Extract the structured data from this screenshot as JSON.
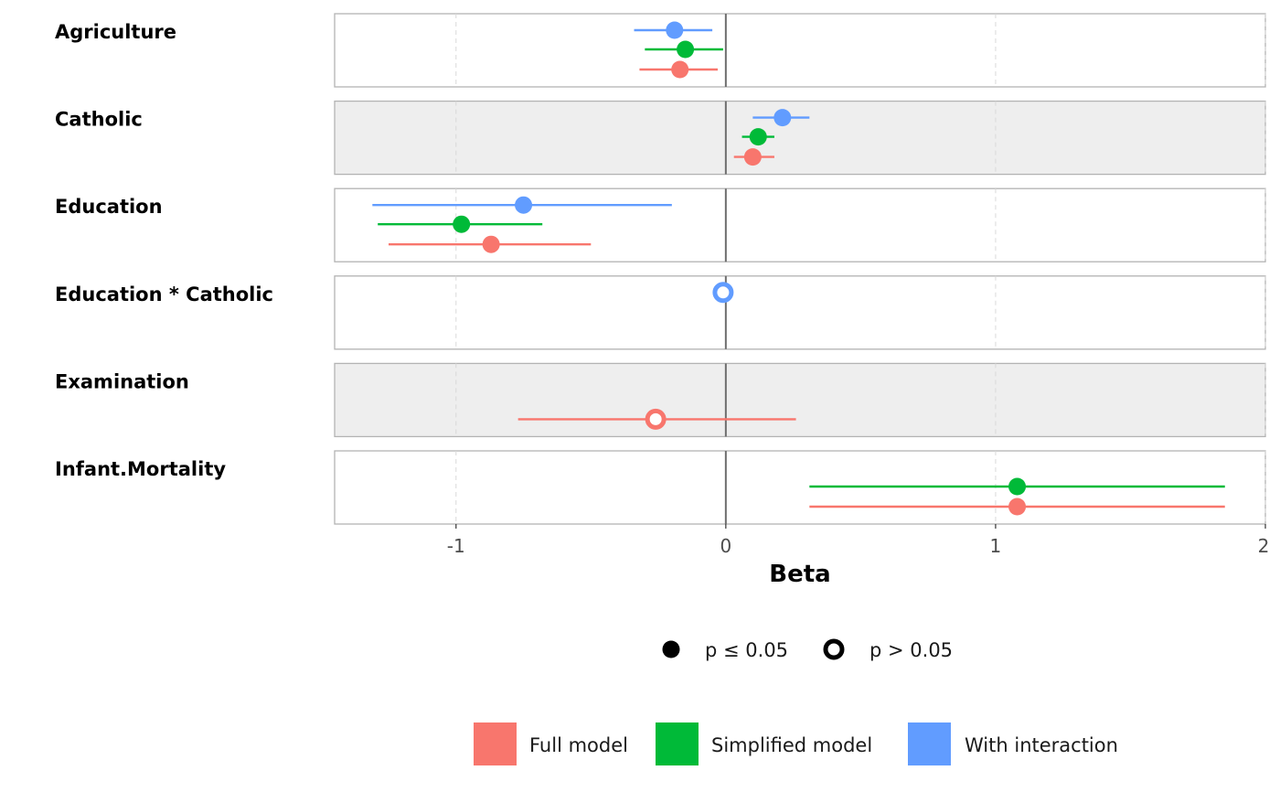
{
  "chart_data": {
    "type": "scatter",
    "subtype": "coefficient-forest-plot",
    "xlabel": "Beta",
    "xlim": [
      -1.45,
      2.0
    ],
    "xticks": [
      -1,
      0,
      1,
      2
    ],
    "xtick_labels": [
      "-1",
      "0",
      "1",
      "2"
    ],
    "reference_line": 0,
    "grid": true,
    "facet_backgrounds": [
      "#ffffff",
      "#eeeeee",
      "#ffffff",
      "#ffffff",
      "#eeeeee",
      "#ffffff"
    ],
    "terms": [
      "Agriculture",
      "Catholic",
      "Education",
      "Education * Catholic",
      "Examination",
      "Infant.Mortality"
    ],
    "series": [
      {
        "name": "Full model",
        "color": "#F8766D",
        "points": [
          {
            "term": "Agriculture",
            "estimate": -0.17,
            "low": -0.32,
            "high": -0.03,
            "significant": true
          },
          {
            "term": "Catholic",
            "estimate": 0.1,
            "low": 0.03,
            "high": 0.18,
            "significant": true
          },
          {
            "term": "Education",
            "estimate": -0.87,
            "low": -1.25,
            "high": -0.5,
            "significant": true
          },
          {
            "term": "Examination",
            "estimate": -0.26,
            "low": -0.77,
            "high": 0.26,
            "significant": false
          },
          {
            "term": "Infant.Mortality",
            "estimate": 1.08,
            "low": 0.31,
            "high": 1.85,
            "significant": true
          }
        ]
      },
      {
        "name": "Simplified model",
        "color": "#00BA38",
        "points": [
          {
            "term": "Agriculture",
            "estimate": -0.15,
            "low": -0.3,
            "high": -0.01,
            "significant": true
          },
          {
            "term": "Catholic",
            "estimate": 0.12,
            "low": 0.06,
            "high": 0.18,
            "significant": true
          },
          {
            "term": "Education",
            "estimate": -0.98,
            "low": -1.29,
            "high": -0.68,
            "significant": true
          },
          {
            "term": "Infant.Mortality",
            "estimate": 1.08,
            "low": 0.31,
            "high": 1.85,
            "significant": true
          }
        ]
      },
      {
        "name": "With interaction",
        "color": "#619CFF",
        "points": [
          {
            "term": "Agriculture",
            "estimate": -0.19,
            "low": -0.34,
            "high": -0.05,
            "significant": true
          },
          {
            "term": "Catholic",
            "estimate": 0.21,
            "low": 0.1,
            "high": 0.31,
            "significant": true
          },
          {
            "term": "Education",
            "estimate": -0.75,
            "low": -1.31,
            "high": -0.2,
            "significant": true
          },
          {
            "term": "Education * Catholic",
            "estimate": -0.01,
            "low": -0.01,
            "high": -0.01,
            "significant": false
          }
        ]
      }
    ],
    "legend": {
      "placement": "bottom",
      "significance": [
        {
          "label": "p ≤ 0.05",
          "filled": true
        },
        {
          "label": "p > 0.05",
          "filled": false
        }
      ],
      "models": [
        "Full model",
        "Simplified model",
        "With interaction"
      ]
    }
  }
}
